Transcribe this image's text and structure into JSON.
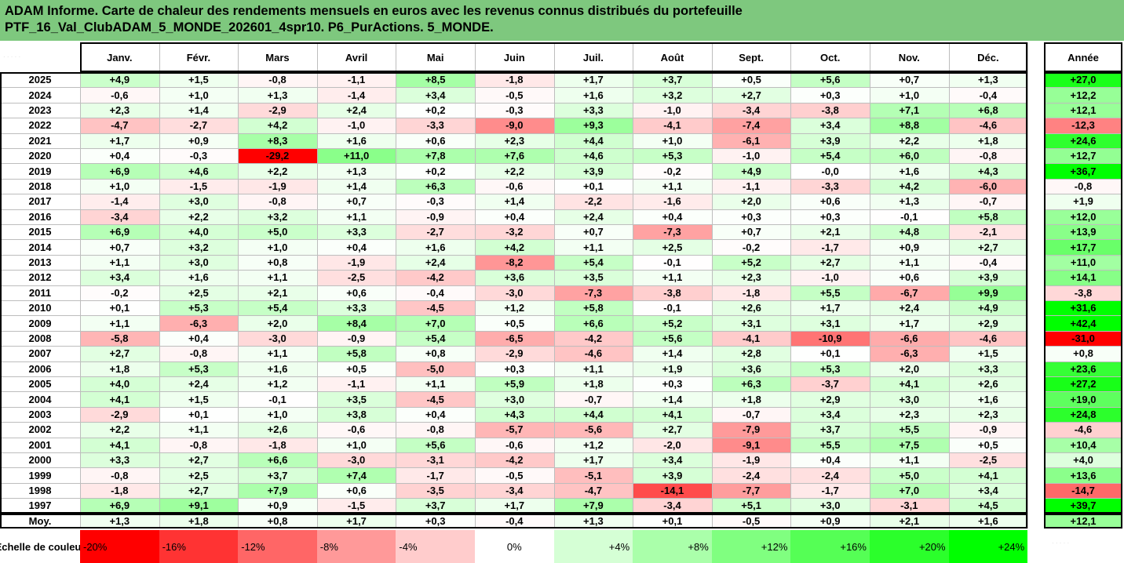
{
  "title_lines": [
    "ADAM Informe. Carte de chaleur des rendements mensuels en euros avec les revenus connus distribués du portefeuille",
    "PTF_16_Val_ClubADAM_5_MONDE_202601_4spr10. P6_PurActions. 5_MONDE."
  ],
  "chart_data": {
    "type": "heatmap",
    "title": "ADAM Informe. Carte de chaleur des rendements mensuels en euros avec les revenus connus distribués du portefeuille PTF_16_Val_ClubADAM_5_MONDE_202601_4spr10. P6_PurActions. 5_MONDE.",
    "columns": [
      "Janv.",
      "Févr.",
      "Mars",
      "Avril",
      "Mai",
      "Juin",
      "Juil.",
      "Août",
      "Sept.",
      "Oct.",
      "Nov.",
      "Déc."
    ],
    "year_column": "Année",
    "rows": [
      {
        "label": "2025",
        "values": [
          "+4,9",
          "+1,5",
          "-0,8",
          "-1,1",
          "+8,5",
          "-1,8",
          "+1,7",
          "+3,7",
          "+0,5",
          "+5,6",
          "+0,7",
          "+1,3"
        ],
        "year": "+27,0"
      },
      {
        "label": "2024",
        "values": [
          "-0,6",
          "+1,0",
          "+1,3",
          "-1,4",
          "+3,4",
          "-0,5",
          "+1,6",
          "+3,2",
          "+2,7",
          "+0,3",
          "+1,0",
          "-0,4"
        ],
        "year": "+12,2"
      },
      {
        "label": "2023",
        "values": [
          "+2,3",
          "+1,4",
          "-2,9",
          "+2,4",
          "+0,2",
          "-0,3",
          "+3,3",
          "-1,0",
          "-3,4",
          "-3,8",
          "+7,1",
          "+6,8"
        ],
        "year": "+12,1"
      },
      {
        "label": "2022",
        "values": [
          "-4,7",
          "-2,7",
          "+4,2",
          "-1,0",
          "-3,3",
          "-9,0",
          "+9,3",
          "-4,1",
          "-7,4",
          "+3,4",
          "+8,8",
          "-4,6"
        ],
        "year": "-12,3"
      },
      {
        "label": "2021",
        "values": [
          "+1,7",
          "+0,9",
          "+8,3",
          "+1,6",
          "+0,6",
          "+2,3",
          "+4,4",
          "+1,0",
          "-6,1",
          "+3,9",
          "+2,2",
          "+1,8"
        ],
        "year": "+24,6"
      },
      {
        "label": "2020",
        "values": [
          "+0,4",
          "-0,3",
          "-29,2",
          "+11,0",
          "+7,8",
          "+7,6",
          "+4,6",
          "+5,3",
          "-1,0",
          "+5,4",
          "+6,0",
          "-0,8"
        ],
        "year": "+12,7"
      },
      {
        "label": "2019",
        "values": [
          "+6,9",
          "+4,6",
          "+2,2",
          "+1,3",
          "+0,2",
          "+2,2",
          "+3,9",
          "-0,2",
          "+4,9",
          "-0,0",
          "+1,6",
          "+4,3"
        ],
        "year": "+36,7"
      },
      {
        "label": "2018",
        "values": [
          "+1,0",
          "-1,5",
          "-1,9",
          "+1,4",
          "+6,3",
          "-0,6",
          "+0,1",
          "+1,1",
          "-1,1",
          "-3,3",
          "+4,2",
          "-6,0"
        ],
        "year": "-0,8"
      },
      {
        "label": "2017",
        "values": [
          "-1,4",
          "+3,0",
          "-0,8",
          "+0,7",
          "-0,3",
          "+1,4",
          "-2,2",
          "-1,6",
          "+2,0",
          "+0,6",
          "+1,3",
          "-0,7"
        ],
        "year": "+1,9"
      },
      {
        "label": "2016",
        "values": [
          "-3,4",
          "+2,2",
          "+3,2",
          "+1,1",
          "-0,9",
          "+0,4",
          "+2,4",
          "+0,4",
          "+0,3",
          "+0,3",
          "-0,1",
          "+5,8"
        ],
        "year": "+12,0"
      },
      {
        "label": "2015",
        "values": [
          "+6,9",
          "+4,0",
          "+5,0",
          "+3,3",
          "-2,7",
          "-3,2",
          "+0,7",
          "-7,3",
          "+0,7",
          "+2,1",
          "+4,8",
          "-2,1"
        ],
        "year": "+13,9"
      },
      {
        "label": "2014",
        "values": [
          "+0,7",
          "+3,2",
          "+1,0",
          "+0,4",
          "+1,6",
          "+4,2",
          "+1,1",
          "+2,5",
          "-0,2",
          "-1,7",
          "+0,9",
          "+2,7"
        ],
        "year": "+17,7"
      },
      {
        "label": "2013",
        "values": [
          "+1,1",
          "+3,0",
          "+0,8",
          "-1,9",
          "+2,4",
          "-8,2",
          "+5,4",
          "-0,1",
          "+5,2",
          "+2,7",
          "+1,1",
          "-0,4"
        ],
        "year": "+11,0"
      },
      {
        "label": "2012",
        "values": [
          "+3,4",
          "+1,6",
          "+1,1",
          "-2,5",
          "-4,2",
          "+3,6",
          "+3,5",
          "+1,1",
          "+2,3",
          "-1,0",
          "+0,6",
          "+3,9"
        ],
        "year": "+14,1"
      },
      {
        "label": "2011",
        "values": [
          "-0,2",
          "+2,5",
          "+2,1",
          "+0,6",
          "-0,4",
          "-3,0",
          "-7,3",
          "-3,8",
          "-1,8",
          "+5,5",
          "-6,7",
          "+9,9"
        ],
        "year": "-3,8"
      },
      {
        "label": "2010",
        "values": [
          "+0,1",
          "+5,3",
          "+5,4",
          "+3,3",
          "-4,5",
          "+1,2",
          "+5,8",
          "-0,1",
          "+2,6",
          "+1,7",
          "+2,4",
          "+4,9"
        ],
        "year": "+31,6"
      },
      {
        "label": "2009",
        "values": [
          "+1,1",
          "-6,3",
          "+2,0",
          "+8,4",
          "+7,0",
          "+0,5",
          "+6,6",
          "+5,2",
          "+3,1",
          "+3,1",
          "+1,7",
          "+2,9"
        ],
        "year": "+42,4"
      },
      {
        "label": "2008",
        "values": [
          "-5,8",
          "+0,4",
          "-3,0",
          "-0,9",
          "+5,4",
          "-6,5",
          "-4,2",
          "+5,6",
          "-4,1",
          "-10,9",
          "-6,6",
          "-4,6"
        ],
        "year": "-31,0"
      },
      {
        "label": "2007",
        "values": [
          "+2,7",
          "-0,8",
          "+1,1",
          "+5,8",
          "+0,8",
          "-2,9",
          "-4,6",
          "+1,4",
          "+2,8",
          "+0,1",
          "-6,3",
          "+1,5"
        ],
        "year": "+0,8"
      },
      {
        "label": "2006",
        "values": [
          "+1,8",
          "+5,3",
          "+1,6",
          "+0,5",
          "-5,0",
          "+0,3",
          "+1,1",
          "+1,9",
          "+3,6",
          "+5,3",
          "+2,0",
          "+3,3"
        ],
        "year": "+23,6"
      },
      {
        "label": "2005",
        "values": [
          "+4,0",
          "+2,4",
          "+1,2",
          "-1,1",
          "+1,1",
          "+5,9",
          "+1,8",
          "+0,3",
          "+6,3",
          "-3,7",
          "+4,1",
          "+2,6"
        ],
        "year": "+27,2"
      },
      {
        "label": "2004",
        "values": [
          "+4,1",
          "+1,5",
          "-0,1",
          "+3,5",
          "-4,5",
          "+3,0",
          "-0,7",
          "+1,4",
          "+1,8",
          "+2,9",
          "+3,0",
          "+1,6"
        ],
        "year": "+19,0"
      },
      {
        "label": "2003",
        "values": [
          "-2,9",
          "+0,1",
          "+1,0",
          "+3,8",
          "+0,4",
          "+4,3",
          "+4,4",
          "+4,1",
          "-0,7",
          "+3,4",
          "+2,3",
          "+2,3"
        ],
        "year": "+24,8"
      },
      {
        "label": "2002",
        "values": [
          "+2,2",
          "+1,1",
          "+2,6",
          "-0,6",
          "-0,8",
          "-5,7",
          "-5,6",
          "+2,7",
          "-7,9",
          "+3,7",
          "+5,5",
          "-0,9"
        ],
        "year": "-4,6"
      },
      {
        "label": "2001",
        "values": [
          "+4,1",
          "-0,8",
          "-1,8",
          "+1,0",
          "+5,6",
          "-0,6",
          "+1,2",
          "-2,0",
          "-9,1",
          "+5,5",
          "+7,5",
          "+0,5"
        ],
        "year": "+10,4"
      },
      {
        "label": "2000",
        "values": [
          "+3,3",
          "+2,7",
          "+6,6",
          "-3,0",
          "-3,1",
          "-4,2",
          "+1,7",
          "+3,4",
          "-1,9",
          "+0,4",
          "+1,1",
          "-2,5"
        ],
        "year": "+4,0"
      },
      {
        "label": "1999",
        "values": [
          "-0,8",
          "+2,5",
          "+3,7",
          "+7,4",
          "-1,7",
          "-0,5",
          "-5,1",
          "+3,9",
          "-2,4",
          "-2,4",
          "+5,0",
          "+4,1"
        ],
        "year": "+13,6"
      },
      {
        "label": "1998",
        "values": [
          "-1,8",
          "+2,7",
          "+7,9",
          "+0,6",
          "-3,5",
          "-3,4",
          "-4,7",
          "-14,1",
          "-7,7",
          "-1,7",
          "+7,0",
          "+3,4"
        ],
        "year": "-14,7"
      },
      {
        "label": "1997",
        "values": [
          "+6,9",
          "+9,1",
          "+0,9",
          "-1,5",
          "+3,7",
          "+1,7",
          "+7,9",
          "-3,4",
          "+5,1",
          "+3,0",
          "-3,1",
          "+4,5"
        ],
        "year": "+39,7"
      }
    ],
    "average_row": {
      "label": "Moy.",
      "values": [
        "+1,3",
        "+1,8",
        "+0,8",
        "+1,7",
        "+0,3",
        "-0,4",
        "+1,3",
        "+0,1",
        "-0,5",
        "+0,9",
        "+2,1",
        "+1,6"
      ],
      "year": "+12,1"
    },
    "legend": {
      "label": "Echelle de couleur",
      "stops": [
        "-20%",
        "-16%",
        "-12%",
        "-8%",
        "-4%",
        "0%",
        "+4%",
        "+8%",
        "+12%",
        "+16%",
        "+20%",
        "+24%"
      ]
    },
    "colors": {
      "title_bg": "#7ec87e",
      "negative_max": "#ff0000",
      "neutral": "#ffffff",
      "positive_max": "#00ff00"
    }
  }
}
